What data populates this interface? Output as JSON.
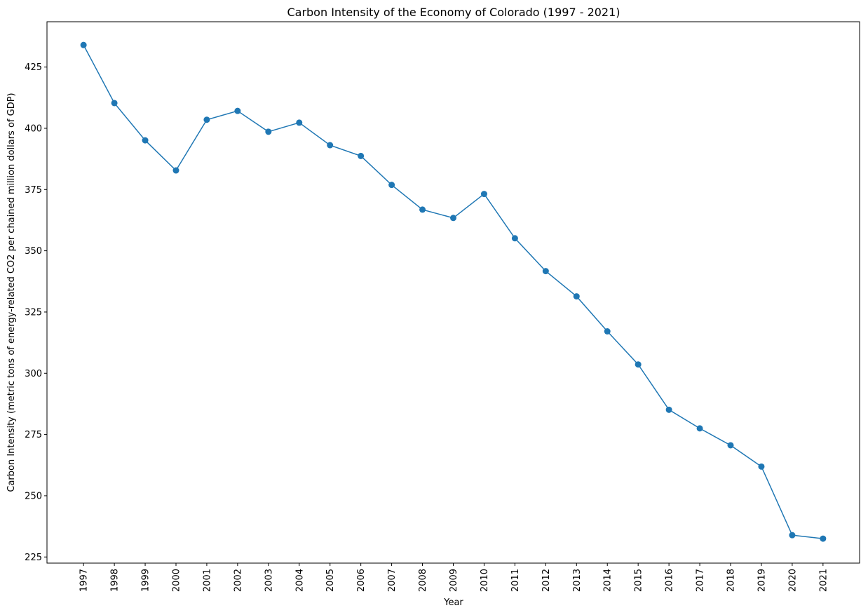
{
  "chart_data": {
    "type": "line",
    "title": "Carbon Intensity of the Economy of Colorado (1997 - 2021)",
    "xlabel": "Year",
    "ylabel": "Carbon Intensity (metric tons of energy-related CO2 per chained million dollars of GDP)",
    "categories": [
      "1997",
      "1998",
      "1999",
      "2000",
      "2001",
      "2002",
      "2003",
      "2004",
      "2005",
      "2006",
      "2007",
      "2008",
      "2009",
      "2010",
      "2011",
      "2012",
      "2013",
      "2014",
      "2015",
      "2016",
      "2017",
      "2018",
      "2019",
      "2020",
      "2021"
    ],
    "series": [
      {
        "values": [
          434.0,
          410.3,
          395.1,
          382.8,
          403.5,
          407.1,
          398.6,
          402.3,
          393.1,
          388.7,
          376.9,
          366.8,
          363.4,
          373.2,
          355.1,
          341.7,
          331.4,
          317.1,
          303.6,
          285.1,
          277.5,
          270.6,
          261.9,
          233.9,
          232.5
        ],
        "color": "#1f77b4"
      }
    ],
    "yticks": [
      225,
      250,
      275,
      300,
      325,
      350,
      375,
      400,
      425
    ],
    "ylim": [
      222.5,
      443.5
    ],
    "grid": false,
    "legend": "none"
  }
}
